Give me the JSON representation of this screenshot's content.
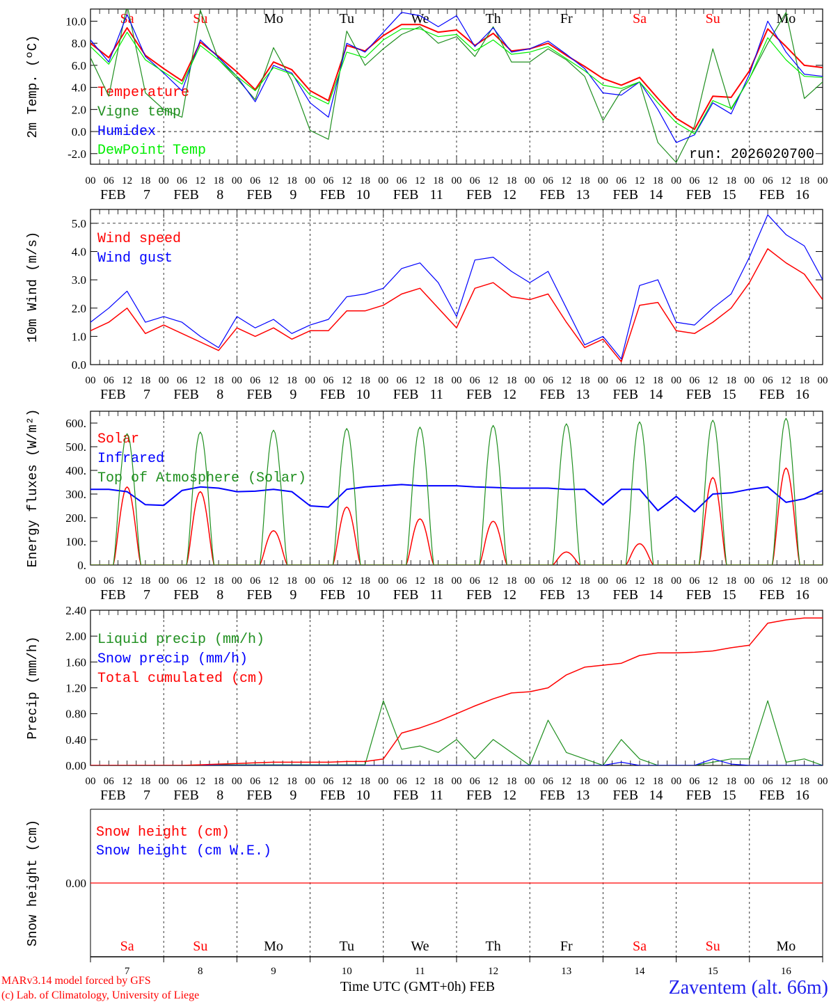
{
  "title": "Zaventem (alt. 66m)",
  "credit_lines": [
    "MARv3.14 model forced by GFS",
    "(c) Lab. of Climatology, University of Liege"
  ],
  "xaxis_title": "Time UTC (GMT+0h) FEB",
  "run_label": "run: 2026020700",
  "month": "FEB",
  "days": [
    {
      "num": "7",
      "name": "Sa",
      "color": "#ff0000"
    },
    {
      "num": "8",
      "name": "Su",
      "color": "#ff0000"
    },
    {
      "num": "9",
      "name": "Mo",
      "color": "#000000"
    },
    {
      "num": "10",
      "name": "Tu",
      "color": "#000000"
    },
    {
      "num": "11",
      "name": "We",
      "color": "#000000"
    },
    {
      "num": "12",
      "name": "Th",
      "color": "#000000"
    },
    {
      "num": "13",
      "name": "Fr",
      "color": "#000000"
    },
    {
      "num": "14",
      "name": "Sa",
      "color": "#ff0000"
    },
    {
      "num": "15",
      "name": "Su",
      "color": "#ff0000"
    },
    {
      "num": "16",
      "name": "Mo",
      "color": "#000000"
    }
  ],
  "hour_labels": [
    "00",
    "06",
    "12",
    "18"
  ],
  "chart_data": [
    {
      "type": "line",
      "ylabel": "2m Temp. (ºC)",
      "ylim": [
        -2.96,
        11.1
      ],
      "yticks": [
        "-2.0",
        "0.0",
        "2.0",
        "4.0",
        "6.0",
        "8.0",
        "10.0"
      ],
      "x_hours_step": 6,
      "reference_line": 0,
      "series": [
        {
          "name": "Temperature",
          "color": "#ff0000",
          "width": 2,
          "values": [
            8.0,
            6.7,
            9.4,
            6.9,
            5.7,
            4.6,
            8.1,
            6.8,
            5.4,
            3.8,
            6.3,
            5.6,
            3.7,
            2.8,
            7.8,
            7.3,
            8.7,
            9.7,
            9.7,
            9.0,
            9.2,
            7.8,
            8.9,
            7.3,
            7.5,
            8.0,
            6.9,
            5.9,
            4.8,
            4.2,
            4.9,
            3.0,
            1.2,
            0.2,
            3.2,
            3.1,
            5.5,
            9.3,
            7.7,
            6.0,
            5.8
          ]
        },
        {
          "name": "Vigne temp",
          "color": "#1f8f1f",
          "width": 1.2,
          "values": [
            6.7,
            3.2,
            11.5,
            3.5,
            2.0,
            1.3,
            11.0,
            6.5,
            4.8,
            2.9,
            7.6,
            4.6,
            0.1,
            -0.7,
            9.1,
            6.0,
            7.5,
            8.8,
            9.5,
            8.0,
            8.6,
            6.8,
            9.5,
            6.3,
            6.3,
            7.5,
            6.5,
            5.0,
            1.0,
            3.7,
            4.5,
            -1.0,
            -2.8,
            0.5,
            7.5,
            2.0,
            4.8,
            8.0,
            10.8,
            3.0,
            4.5
          ]
        },
        {
          "name": "Humidex",
          "color": "#0000ff",
          "width": 1.2,
          "values": [
            8.3,
            6.3,
            10.6,
            6.8,
            5.3,
            3.7,
            8.3,
            6.7,
            5.0,
            2.7,
            6.0,
            5.3,
            2.6,
            1.3,
            8.0,
            7.2,
            9.0,
            10.8,
            10.5,
            9.5,
            10.5,
            7.7,
            9.4,
            7.2,
            7.5,
            8.2,
            7.0,
            5.7,
            3.5,
            3.3,
            4.5,
            2.0,
            -1.0,
            -0.3,
            2.6,
            1.6,
            5.2,
            10.0,
            7.2,
            5.2,
            5.0
          ]
        },
        {
          "name": "DewPoint Temp",
          "color": "#00ee00",
          "width": 1.2,
          "values": [
            7.7,
            6.1,
            9.0,
            6.5,
            5.4,
            4.3,
            7.8,
            6.5,
            5.0,
            3.7,
            5.8,
            5.2,
            3.3,
            2.5,
            7.2,
            6.7,
            8.3,
            9.3,
            9.3,
            8.6,
            8.8,
            7.3,
            8.3,
            7.0,
            7.2,
            7.7,
            6.6,
            5.5,
            4.2,
            3.9,
            4.5,
            2.6,
            0.8,
            -0.2,
            2.8,
            2.1,
            4.8,
            8.5,
            6.5,
            5.0,
            4.9
          ]
        }
      ]
    },
    {
      "type": "line",
      "ylabel": "10m Wind (m/s)",
      "ylim": [
        0,
        5.49
      ],
      "yticks": [
        "0.0",
        "1.0",
        "2.0",
        "3.0",
        "4.0",
        "5.0"
      ],
      "x_hours_step": 6,
      "reference_line": 5,
      "series": [
        {
          "name": "Wind speed",
          "color": "#ff0000",
          "width": 1.5,
          "values": [
            1.2,
            1.5,
            2.0,
            1.1,
            1.4,
            1.1,
            0.8,
            0.5,
            1.3,
            1.0,
            1.3,
            0.9,
            1.2,
            1.2,
            1.9,
            1.9,
            2.1,
            2.5,
            2.7,
            2.0,
            1.3,
            2.7,
            2.9,
            2.4,
            2.3,
            2.5,
            1.5,
            0.6,
            0.9,
            0.1,
            2.1,
            2.2,
            1.2,
            1.1,
            1.5,
            2.0,
            2.9,
            4.1,
            3.6,
            3.2,
            2.3
          ]
        },
        {
          "name": "Wind gust",
          "color": "#0000ff",
          "width": 1.2,
          "values": [
            1.5,
            2.0,
            2.6,
            1.5,
            1.7,
            1.5,
            1.0,
            0.6,
            1.7,
            1.3,
            1.6,
            1.1,
            1.4,
            1.6,
            2.4,
            2.5,
            2.7,
            3.4,
            3.6,
            2.9,
            1.7,
            3.7,
            3.8,
            3.3,
            2.9,
            3.3,
            2.0,
            0.7,
            1.0,
            0.2,
            2.8,
            3.0,
            1.5,
            1.4,
            2.0,
            2.5,
            3.8,
            5.3,
            4.6,
            4.2,
            3.0
          ]
        }
      ]
    },
    {
      "type": "line",
      "ylabel": "Energy fluxes (W/m²)",
      "ylim": [
        0,
        650
      ],
      "yticks": [
        "0.",
        "100.",
        "200.",
        "300.",
        "400.",
        "500.",
        "600."
      ],
      "x_hours_step": 6,
      "series": [
        {
          "name": "Solar",
          "color": "#ff0000",
          "width": 1.5,
          "daily_peak": [
            330,
            310,
            145,
            245,
            195,
            185,
            55,
            90,
            370,
            410
          ]
        },
        {
          "name": "Infrared",
          "color": "#0000ff",
          "width": 2,
          "values": [
            320,
            320,
            310,
            255,
            252,
            315,
            330,
            325,
            310,
            312,
            320,
            310,
            250,
            245,
            320,
            330,
            335,
            340,
            335,
            335,
            335,
            330,
            328,
            325,
            325,
            325,
            320,
            320,
            255,
            320,
            320,
            230,
            290,
            225,
            300,
            305,
            320,
            330,
            265,
            280,
            315
          ]
        },
        {
          "name": "Top of Atmosphere (Solar)",
          "color": "#1f8f1f",
          "width": 1.2,
          "daily_peak": [
            555,
            562,
            570,
            577,
            583,
            590,
            597,
            605,
            612,
            620
          ]
        }
      ]
    },
    {
      "type": "line",
      "ylabel": "Precip (mm/h)",
      "ylim": [
        0,
        2.4
      ],
      "yticks": [
        "0.00",
        "0.40",
        "0.80",
        "1.20",
        "1.60",
        "2.00",
        "2.40"
      ],
      "x_hours_step": 6,
      "series": [
        {
          "name": "Liquid precip (mm/h)",
          "color": "#1f8f1f",
          "width": 1.2,
          "values": [
            0,
            0,
            0,
            0,
            0,
            0,
            0.01,
            0.01,
            0.01,
            0.01,
            0.01,
            0.01,
            0.01,
            0.01,
            0.01,
            0.01,
            1.0,
            0.25,
            0.3,
            0.2,
            0.4,
            0.1,
            0.4,
            0.2,
            0.0,
            0.7,
            0.2,
            0.1,
            0.0,
            0.4,
            0.1,
            0.0,
            0.0,
            0.0,
            0.05,
            0.1,
            0.1,
            1.0,
            0.05,
            0.1,
            0
          ]
        },
        {
          "name": "Snow precip (mm/h)",
          "color": "#0000ff",
          "width": 1.2,
          "values": [
            0,
            0,
            0,
            0,
            0,
            0,
            0,
            0,
            0,
            0,
            0,
            0,
            0,
            0,
            0,
            0,
            0,
            0,
            0,
            0,
            0,
            0,
            0,
            0,
            0,
            0,
            0,
            0,
            0,
            0.05,
            0,
            0,
            0,
            0,
            0.1,
            0.02,
            0,
            0,
            0,
            0,
            0
          ]
        },
        {
          "name": "Total cumulated (cm)",
          "color": "#ff0000",
          "width": 1.5,
          "values": [
            0,
            0,
            0,
            0,
            0,
            0,
            0.01,
            0.02,
            0.03,
            0.04,
            0.05,
            0.05,
            0.05,
            0.05,
            0.06,
            0.06,
            0.1,
            0.5,
            0.58,
            0.68,
            0.8,
            0.92,
            1.03,
            1.12,
            1.14,
            1.2,
            1.4,
            1.52,
            1.55,
            1.58,
            1.7,
            1.74,
            1.74,
            1.75,
            1.77,
            1.82,
            1.86,
            2.2,
            2.25,
            2.28,
            2.28
          ]
        }
      ]
    },
    {
      "type": "line",
      "ylabel": "Snow height (cm)",
      "ylim": [
        -1,
        1
      ],
      "yticks": [
        "0.00"
      ],
      "x_hours_step": 6,
      "series": [
        {
          "name": "Snow height (cm)",
          "color": "#ff0000",
          "width": 1.2,
          "values": [
            0,
            0,
            0,
            0,
            0,
            0,
            0,
            0,
            0,
            0,
            0,
            0,
            0,
            0,
            0,
            0,
            0,
            0,
            0,
            0,
            0,
            0,
            0,
            0,
            0,
            0,
            0,
            0,
            0,
            0,
            0,
            0,
            0,
            0,
            0,
            0,
            0,
            0,
            0,
            0,
            0
          ]
        },
        {
          "name": "Snow height (cm W.E.)",
          "color": "#0000ff",
          "width": 1.2,
          "values": []
        }
      ]
    }
  ]
}
